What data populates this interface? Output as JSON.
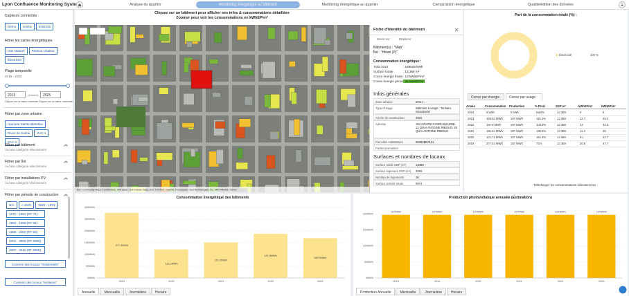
{
  "header": {
    "title": "Lyon Confluence Monitoring System",
    "tabs": [
      "Analyse du quartier",
      "Monitoring énergétique au bâtiment",
      "Monitoring énergétique au quartier",
      "Comparaison énergétique",
      "Qualité/édition des données"
    ],
    "active_tab": 1
  },
  "sidebar": {
    "sensors": {
      "label": "Capteurs connectés :",
      "options": [
        "Démo",
        "Embix",
        "ENEDIS"
      ]
    },
    "energy_filter": {
      "label": "Filtrer les cartes énergétiques",
      "options": [
        "Gaz Naturel",
        "Réseau Chaleur",
        "Électricité"
      ]
    },
    "time_range": {
      "label": "Plage temporelle",
      "range": "2019 - 2025",
      "min": "2019",
      "max": "2025",
      "min_hint": "Cliquez sur la valeur minimale",
      "max_hint": "Cliquez sur la valeur maximale"
    },
    "zone_filter": {
      "label": "Filtrer par zone urbaine",
      "options": [
        "Hameau Sainte-Blandine",
        "Rives de Saône",
        "ZAC 1",
        "ZAC 2"
      ]
    },
    "dropdowns": [
      {
        "label": "Filtrer par bâtiment",
        "hint": "Aucune catégorie sélectionnée"
      },
      {
        "label": "Filtrer par îlot",
        "hint": "Aucune catégorie sélectionnée"
      },
      {
        "label": "Filtrer par installations PV",
        "hint": "Aucune catégorie sélectionnée"
      }
    ],
    "period_filter": {
      "label": "Filtrer par période de construction",
      "options": [
        "N/A",
        "< 1949",
        "1949 - 1974",
        "1975 - 1982 (RT 74)",
        "1983 - 1988 (RT 82)",
        "1989 - 2000 (RT 88)",
        "2001 - 2005 (RT 2000)",
        "2007 - 2011 (RT 2005)"
      ]
    },
    "buttons": [
      "Contenir des locaux \"résidentiels\"",
      "Contenir des locaux \"tertiaires\""
    ]
  },
  "map": {
    "title": "Cliquez sur un bâtiment pour afficher ses infos & consommations détaillées",
    "subtitle": "Zoomer pour voir les consommations en kWhEP/m²",
    "attribution": "Esri Community Maps Contributors, IGN 2022 - Ext France 2022, Esri, TomTom, Garmin, Foursquare, GeoTechnologies, Inc, METI/NASA, USGS"
  },
  "fiche": {
    "title": "Fiche d'identité du bâtiment",
    "tools": [
      "Zoom sur",
      "Déplacer"
    ],
    "building": "Bâtiment(s) : \"Mab\"",
    "ilot": "Îlot : \"Hikari (P)\"",
    "energy": {
      "heading": "Consommation énergétique :",
      "rows": [
        [
          "Total 2023",
          ": 169525 kWh"
        ],
        [
          "Surface totale",
          ": 13 369 m²"
        ],
        [
          "Conso énergie finale",
          ": 13 kWhEF/m²"
        ],
        [
          "Conso énergie primaire",
          ": 29 kWhEP/m²"
        ]
      ]
    },
    "general": {
      "heading": "Infos générales",
      "rows": [
        [
          "Zone urbaine",
          "ZAC 1"
        ],
        [
          "Type d'usage",
          "Bâtiment à usage : Tertiaire, Résidentiel"
        ],
        [
          "Année de construction",
          "2015"
        ],
        [
          "Adresse",
          "154 COURS CHARLEMAGNE, 21 QUAI ANTOINE RIBOUD, 26 QUAI ANTOINE RIBOUD"
        ],
        [
          "Parcelles cadastrales",
          "69382BE0123"
        ],
        [
          "Parties prenantes"
        ]
      ]
    },
    "surfaces": {
      "heading": "Surfaces et nombres de locaux",
      "rows": [
        [
          "Surface totale SDP (m²)",
          "13369"
        ],
        [
          "Surface logement SDP (m²)",
          "3262"
        ],
        [
          "Nombre de logements",
          "36"
        ],
        [
          "Surface activité totale",
          "9974"
        ]
      ]
    }
  },
  "table": {
    "tabs": [
      "Conso par énergie",
      "Conso par usage"
    ],
    "active_tab": 1,
    "columns": [
      "Année",
      "Consommation",
      "Production",
      "% Prod.",
      "SDP m²",
      "kWhEF/m²",
      "kWhEP/m²"
    ],
    "rows": [
      [
        "2024",
        "0 kWh",
        "0 kWh",
        "NaN%",
        "13 369",
        "0",
        "0"
      ],
      [
        "2023",
        "169.53 MWh",
        "197 MWh",
        "116.2%",
        "13 369",
        "12.7",
        "29.2"
      ],
      [
        "2022",
        "187.8 MWh",
        "197 MWh",
        "104.9%",
        "13 369",
        "14",
        "32.3"
      ],
      [
        "2021",
        "151.24 MWh",
        "197 MWh",
        "130.3%",
        "13 369",
        "11.3",
        "26"
      ],
      [
        "2020",
        "121.72 MWh",
        "197 MWh",
        "161.8%",
        "13 369",
        "9.1",
        "22.7"
      ],
      [
        "2019",
        "277.44 MWh",
        "197 MWh",
        "71%",
        "13 369",
        "20.8",
        "47.7"
      ]
    ],
    "download": "Télécharger les consommations sélectionnées :"
  },
  "chart_data": [
    {
      "type": "bar",
      "title": "Consommation énergétique des bâtiments",
      "categories": [
        "2019",
        "2020",
        "2021",
        "2022",
        "2023"
      ],
      "values": [
        277.44,
        121.72,
        151.24,
        187.8,
        169.53
      ],
      "value_labels": [
        "277.4MWh",
        "121.7MWh",
        "151.2MWh",
        "187.8MWh",
        "169.5MWh"
      ],
      "value_label_position": "center",
      "color": "#fde28f",
      "ylim": [
        0,
        300
      ],
      "yticks": [
        {
          "value": 0,
          "label": "0MWh"
        },
        {
          "value": 50,
          "label": "50MWh"
        },
        {
          "value": 100,
          "label": "100MWh"
        },
        {
          "value": 150,
          "label": "150MWh"
        },
        {
          "value": 200,
          "label": "200MWh"
        },
        {
          "value": 250,
          "label": "250MWh"
        },
        {
          "value": 300,
          "label": "300MWh"
        }
      ],
      "grid": true,
      "tabs": [
        "Annuelle",
        "Mensuelle",
        "Journalière",
        "Horaire"
      ]
    },
    {
      "type": "bar",
      "title": "Production photovoltaïque annuelle (Estimation)",
      "categories": [
        "2018",
        "2019",
        "2020",
        "2021",
        "2022",
        "2023"
      ],
      "values": [
        197,
        197,
        197,
        197,
        197,
        197
      ],
      "value_labels": [
        "197MWh",
        "197MWh",
        "197MWh",
        "197MWh",
        "197MWh",
        "197MWh"
      ],
      "value_label_position": "top",
      "color": "#f7b500",
      "ylim": [
        0,
        220
      ],
      "yticks": [
        {
          "value": 0,
          "label": "0MWh"
        },
        {
          "value": 50,
          "label": "50MWh"
        },
        {
          "value": 100,
          "label": "100MWh"
        },
        {
          "value": 150,
          "label": "150MWh"
        },
        {
          "value": 200,
          "label": "200MWh"
        }
      ],
      "grid": true,
      "tabs": [
        "Production Annuelle",
        "Mensuelle",
        "Journalière",
        "Horaire"
      ]
    },
    {
      "type": "pie",
      "title": "Part de la consommation totale (%) :",
      "categories": [
        "Électricité"
      ],
      "values": [
        100
      ],
      "value_labels": [
        "100 %"
      ],
      "colors": [
        "#fce7a3"
      ],
      "donut": true
    }
  ]
}
